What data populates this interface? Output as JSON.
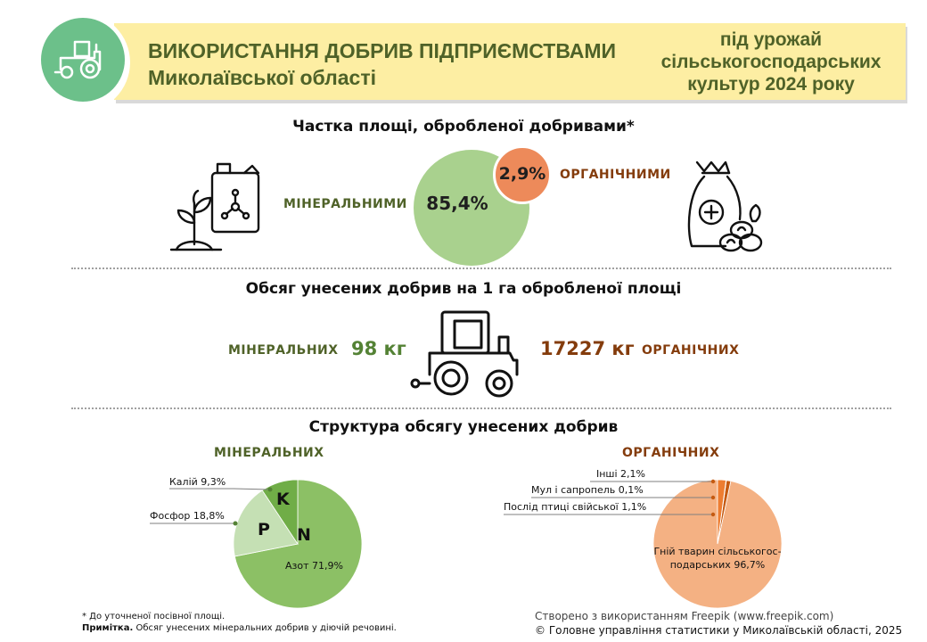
{
  "header": {
    "title_line1": "ВИКОРИСТАННЯ ДОБРИВ ПІДПРИЄМСТВАМИ",
    "title_line2": "Миколаївської області",
    "subtitle_line1": "під урожай",
    "subtitle_line2": "сільськогосподарських",
    "subtitle_line3": "культур 2024 року",
    "logo_icon": "tractor-icon"
  },
  "colors": {
    "banner": "#fdeea3",
    "title": "#4f6228",
    "mineral": "#a9d18e",
    "organic": "#ed8a5a",
    "mineral_text": "#548235",
    "organic_text": "#843c0c"
  },
  "section1": {
    "title": "Частка площі, обробленої добривами*",
    "mineral_label": "МІНЕРАЛЬНИМИ",
    "organic_label": "ОРГАНІЧНИМИ",
    "mineral_value": "85,4%",
    "organic_value": "2,9%",
    "mineral_icon": "canister-sprout-icon",
    "organic_icon": "fertilizer-bag-icon"
  },
  "section2": {
    "title": "Обсяг унесених добрив на 1 га обробленої площі",
    "mineral_label": "МІНЕРАЛЬНИХ",
    "organic_label": "ОРГАНІЧНИХ",
    "mineral_value": "98 кг",
    "organic_value": "17227 кг",
    "icon": "tractor-icon"
  },
  "section3": {
    "title": "Структура обсягу унесених добрив",
    "mineral_heading": "МІНЕРАЛЬНИХ",
    "organic_heading": "ОРГАНІЧНИХ",
    "mineral_letters": {
      "n": "N",
      "p": "P",
      "k": "K"
    }
  },
  "chart_data": [
    {
      "type": "pie",
      "title": "МІНЕРАЛЬНИХ",
      "categories": [
        "Азот",
        "Фосфор",
        "Калій"
      ],
      "values": [
        71.9,
        18.8,
        9.3
      ],
      "labels": [
        "Азот 71,9%",
        "Фосфор 18,8%",
        "Калій 9,3%"
      ],
      "colors": [
        "#8cc065",
        "#c5e0b4",
        "#70ad47"
      ]
    },
    {
      "type": "pie",
      "title": "ОРГАНІЧНИХ",
      "categories": [
        "Гній тварин сільськогосподарських",
        "Послід птиці свійської",
        "Мул і сапропель",
        "Інші"
      ],
      "values": [
        96.7,
        1.1,
        0.1,
        2.1
      ],
      "labels": [
        "Гній тварин сільськогос-",
        "подарських 96,7%",
        "Послід птиці свійської 1,1%",
        "Мул і сапропель 0,1%",
        "Інші 2,1%"
      ],
      "colors": [
        "#f4b183",
        "#c55a11",
        "#843c0c",
        "#ed7d31"
      ]
    }
  ],
  "footer": {
    "note1": "* До уточненої  посівної площі.",
    "note2_bold": "Примітка.",
    "note2_text": "  Обсяг унесених  мінеральних добрив  у діючій речовині.",
    "credit1": "Створено з використанням Freepik (www.freepik.com)",
    "credit2": "© Головне управління статистики у Миколаївській області, 2025"
  }
}
